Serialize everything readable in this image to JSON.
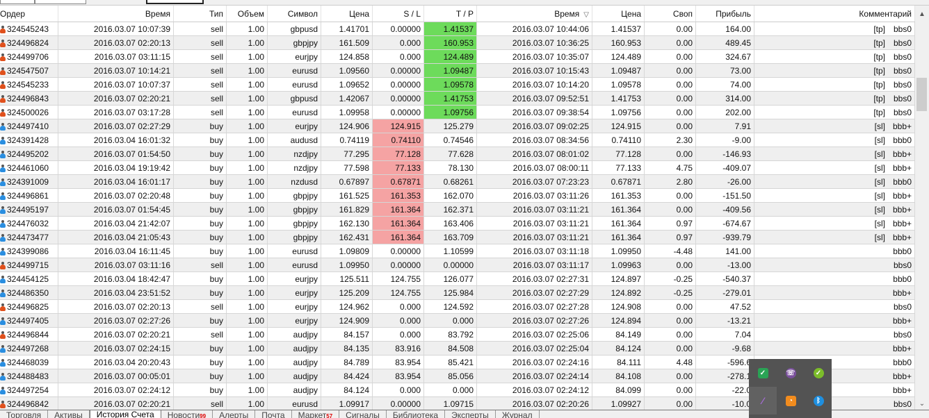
{
  "columns": [
    "Ордер",
    "Время",
    "Тип",
    "Объем",
    "Символ",
    "Цена",
    "S / L",
    "T / P",
    "Время",
    "Цена",
    "Своп",
    "Прибыль",
    "Комментарий"
  ],
  "sort_indicator": "▽",
  "rows": [
    {
      "hl": "tp",
      "cells": [
        "324545243",
        "2016.03.07 10:07:39",
        "sell",
        "1.00",
        "gbpusd",
        "1.41701",
        "0.00000",
        "1.41537",
        "2016.03.07 10:44:06",
        "1.41537",
        "0.00",
        "164.00",
        "[tp]",
        "bbs0"
      ]
    },
    {
      "hl": "tp",
      "cells": [
        "324496824",
        "2016.03.07 02:20:13",
        "sell",
        "1.00",
        "gbpjpy",
        "161.509",
        "0.000",
        "160.953",
        "2016.03.07 10:36:25",
        "160.953",
        "0.00",
        "489.45",
        "[tp]",
        "bbs0"
      ]
    },
    {
      "hl": "tp",
      "cells": [
        "324499706",
        "2016.03.07 03:11:15",
        "sell",
        "1.00",
        "eurjpy",
        "124.858",
        "0.000",
        "124.489",
        "2016.03.07 10:35:07",
        "124.489",
        "0.00",
        "324.67",
        "[tp]",
        "bbs0"
      ]
    },
    {
      "hl": "tp",
      "cells": [
        "324547507",
        "2016.03.07 10:14:21",
        "sell",
        "1.00",
        "eurusd",
        "1.09560",
        "0.00000",
        "1.09487",
        "2016.03.07 10:15:43",
        "1.09487",
        "0.00",
        "73.00",
        "[tp]",
        "bbs0"
      ]
    },
    {
      "hl": "tp",
      "cells": [
        "324545233",
        "2016.03.07 10:07:37",
        "sell",
        "1.00",
        "eurusd",
        "1.09652",
        "0.00000",
        "1.09578",
        "2016.03.07 10:14:20",
        "1.09578",
        "0.00",
        "74.00",
        "[tp]",
        "bbs0"
      ]
    },
    {
      "hl": "tp",
      "cells": [
        "324496843",
        "2016.03.07 02:20:21",
        "sell",
        "1.00",
        "gbpusd",
        "1.42067",
        "0.00000",
        "1.41753",
        "2016.03.07 09:52:51",
        "1.41753",
        "0.00",
        "314.00",
        "[tp]",
        "bbs0"
      ]
    },
    {
      "hl": "tp",
      "cells": [
        "324500026",
        "2016.03.07 03:17:28",
        "sell",
        "1.00",
        "eurusd",
        "1.09958",
        "0.00000",
        "1.09756",
        "2016.03.07 09:38:54",
        "1.09756",
        "0.00",
        "202.00",
        "[tp]",
        "bbs0"
      ]
    },
    {
      "hl": "sl",
      "cells": [
        "324497410",
        "2016.03.07 02:27:29",
        "buy",
        "1.00",
        "eurjpy",
        "124.906",
        "124.915",
        "125.279",
        "2016.03.07 09:02:25",
        "124.915",
        "0.00",
        "7.91",
        "[sl]",
        "bbb+"
      ]
    },
    {
      "hl": "sl",
      "cells": [
        "324391428",
        "2016.03.04 16:01:32",
        "buy",
        "1.00",
        "audusd",
        "0.74119",
        "0.74110",
        "0.74546",
        "2016.03.07 08:34:56",
        "0.74110",
        "2.30",
        "-9.00",
        "[sl]",
        "bbb0"
      ]
    },
    {
      "hl": "sl",
      "cells": [
        "324495202",
        "2016.03.07 01:54:50",
        "buy",
        "1.00",
        "nzdjpy",
        "77.295",
        "77.128",
        "77.628",
        "2016.03.07 08:01:02",
        "77.128",
        "0.00",
        "-146.93",
        "[sl]",
        "bbb+"
      ]
    },
    {
      "hl": "sl",
      "cells": [
        "324461060",
        "2016.03.04 19:19:42",
        "buy",
        "1.00",
        "nzdjpy",
        "77.598",
        "77.133",
        "78.130",
        "2016.03.07 08:00:11",
        "77.133",
        "4.75",
        "-409.07",
        "[sl]",
        "bbb+"
      ]
    },
    {
      "hl": "sl",
      "cells": [
        "324391009",
        "2016.03.04 16:01:17",
        "buy",
        "1.00",
        "nzdusd",
        "0.67897",
        "0.67871",
        "0.68261",
        "2016.03.07 07:23:23",
        "0.67871",
        "2.80",
        "-26.00",
        "[sl]",
        "bbb0"
      ]
    },
    {
      "hl": "sl",
      "cells": [
        "324496861",
        "2016.03.07 02:20:48",
        "buy",
        "1.00",
        "gbpjpy",
        "161.525",
        "161.353",
        "162.070",
        "2016.03.07 03:11:26",
        "161.353",
        "0.00",
        "-151.50",
        "[sl]",
        "bbb+"
      ]
    },
    {
      "hl": "sl",
      "cells": [
        "324495197",
        "2016.03.07 01:54:45",
        "buy",
        "1.00",
        "gbpjpy",
        "161.829",
        "161.364",
        "162.371",
        "2016.03.07 03:11:21",
        "161.364",
        "0.00",
        "-409.56",
        "[sl]",
        "bbb+"
      ]
    },
    {
      "hl": "sl",
      "cells": [
        "324476032",
        "2016.03.04 21:42:07",
        "buy",
        "1.00",
        "gbpjpy",
        "162.130",
        "161.364",
        "163.406",
        "2016.03.07 03:11:21",
        "161.364",
        "0.97",
        "-674.67",
        "[sl]",
        "bbb+"
      ]
    },
    {
      "hl": "sl",
      "cells": [
        "324473477",
        "2016.03.04 21:05:43",
        "buy",
        "1.00",
        "gbpjpy",
        "162.431",
        "161.364",
        "163.709",
        "2016.03.07 03:11:21",
        "161.364",
        "0.97",
        "-939.79",
        "[sl]",
        "bbb+"
      ]
    },
    {
      "hl": "",
      "cells": [
        "324399086",
        "2016.03.04 16:11:45",
        "buy",
        "1.00",
        "eurusd",
        "1.09809",
        "0.00000",
        "1.10599",
        "2016.03.07 03:11:18",
        "1.09950",
        "-4.48",
        "141.00",
        "",
        "bbb0"
      ]
    },
    {
      "hl": "",
      "cells": [
        "324499715",
        "2016.03.07 03:11:16",
        "sell",
        "1.00",
        "eurusd",
        "1.09950",
        "0.00000",
        "0.00000",
        "2016.03.07 03:11:17",
        "1.09963",
        "0.00",
        "-13.00",
        "",
        "bbs0"
      ]
    },
    {
      "hl": "",
      "cells": [
        "324454125",
        "2016.03.04 18:42:47",
        "buy",
        "1.00",
        "eurjpy",
        "125.511",
        "124.755",
        "126.077",
        "2016.03.07 02:27:31",
        "124.897",
        "-0.25",
        "-540.37",
        "",
        "bbb0"
      ]
    },
    {
      "hl": "",
      "cells": [
        "324486350",
        "2016.03.04 23:51:52",
        "buy",
        "1.00",
        "eurjpy",
        "125.209",
        "124.755",
        "125.984",
        "2016.03.07 02:27:29",
        "124.892",
        "-0.25",
        "-279.01",
        "",
        "bbb+"
      ]
    },
    {
      "hl": "",
      "cells": [
        "324496825",
        "2016.03.07 02:20:13",
        "sell",
        "1.00",
        "eurjpy",
        "124.962",
        "0.000",
        "124.592",
        "2016.03.07 02:27:28",
        "124.908",
        "0.00",
        "47.52",
        "",
        "bbs0"
      ]
    },
    {
      "hl": "",
      "cells": [
        "324497405",
        "2016.03.07 02:27:26",
        "buy",
        "1.00",
        "eurjpy",
        "124.909",
        "0.000",
        "0.000",
        "2016.03.07 02:27:26",
        "124.894",
        "0.00",
        "-13.21",
        "",
        "bbb+"
      ]
    },
    {
      "hl": "",
      "cells": [
        "324496844",
        "2016.03.07 02:20:21",
        "sell",
        "1.00",
        "audjpy",
        "84.157",
        "0.000",
        "83.792",
        "2016.03.07 02:25:06",
        "84.149",
        "0.00",
        "7.04",
        "",
        "bbs0"
      ]
    },
    {
      "hl": "",
      "cells": [
        "324497268",
        "2016.03.07 02:24:15",
        "buy",
        "1.00",
        "audjpy",
        "84.135",
        "83.916",
        "84.508",
        "2016.03.07 02:25:04",
        "84.124",
        "0.00",
        "-9.68",
        "",
        "bbb+"
      ]
    },
    {
      "hl": "",
      "cells": [
        "324468039",
        "2016.03.04 20:20:43",
        "buy",
        "1.00",
        "audjpy",
        "84.789",
        "83.954",
        "85.421",
        "2016.03.07 02:24:16",
        "84.111",
        "4.48",
        "-596.6",
        "",
        "bbb0"
      ]
    },
    {
      "hl": "",
      "cells": [
        "324488483",
        "2016.03.07 00:05:01",
        "buy",
        "1.00",
        "audjpy",
        "84.424",
        "83.954",
        "85.056",
        "2016.03.07 02:24:14",
        "84.108",
        "0.00",
        "-278.1",
        "",
        "bbb+"
      ]
    },
    {
      "hl": "",
      "cells": [
        "324497254",
        "2016.03.07 02:24:12",
        "buy",
        "1.00",
        "audjpy",
        "84.124",
        "0.000",
        "0.000",
        "2016.03.07 02:24:12",
        "84.099",
        "0.00",
        "-22.0",
        "",
        "bbb+"
      ]
    },
    {
      "hl": "",
      "cells": [
        "324496842",
        "2016.03.07 02:20:21",
        "sell",
        "1.00",
        "eurusd",
        "1.09917",
        "0.00000",
        "1.09715",
        "2016.03.07 02:20:26",
        "1.09927",
        "0.00",
        "-10.0",
        "",
        "bbs0"
      ]
    }
  ],
  "colors": {
    "tp_highlight": "#6ddb5b",
    "sl_highlight": "#f5a3a3",
    "sell_icon": "#e0501c",
    "buy_icon": "#2a8ee0"
  },
  "tabs": [
    {
      "label": "Торговля",
      "active": false
    },
    {
      "label": "Активы",
      "active": false
    },
    {
      "label": "История Счета",
      "active": true
    },
    {
      "label": "Новости",
      "badge": "99",
      "active": false
    },
    {
      "label": "Алерты",
      "active": false
    },
    {
      "label": "Почта",
      "active": false
    },
    {
      "label": "Маркет",
      "badge": "57",
      "active": false
    },
    {
      "label": "Сигналы",
      "active": false
    },
    {
      "label": "Библиотека",
      "active": false
    },
    {
      "label": "Эксперты",
      "active": false
    },
    {
      "label": "Журнал",
      "active": false
    }
  ],
  "tray_popup": {
    "icons": [
      "check-task-icon",
      "viber-icon",
      "green-chat-icon",
      "feather-pen-icon",
      "speedometer-icon",
      "bluetooth-icon"
    ]
  }
}
